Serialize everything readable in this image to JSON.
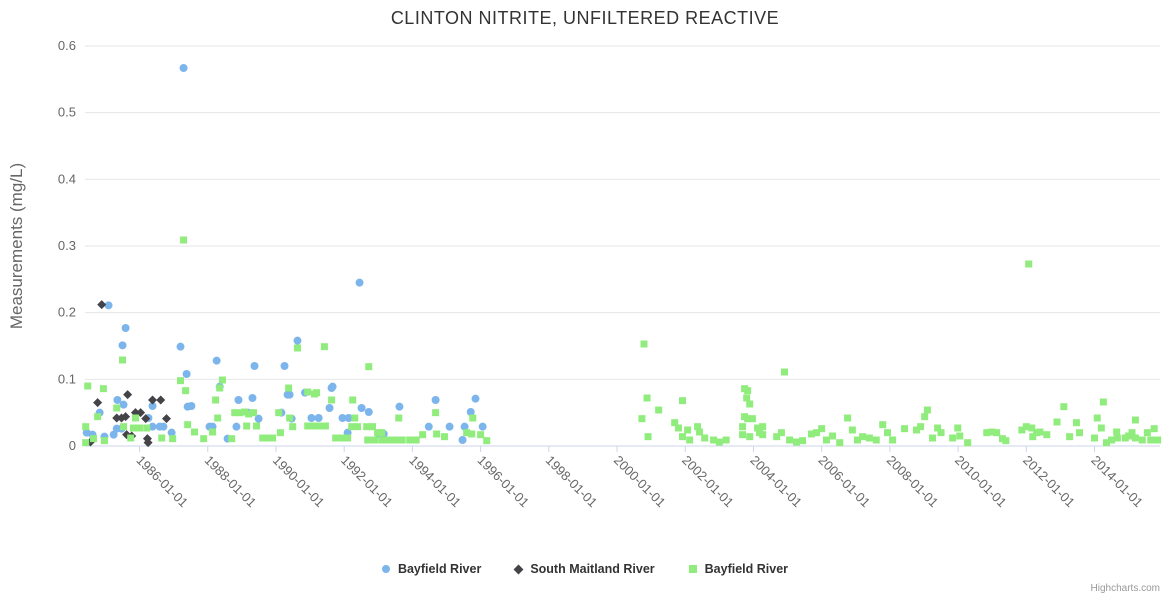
{
  "credits": "Highcharts.com",
  "chart_data": {
    "type": "scatter",
    "title": "CLINTON NITRITE, UNFILTERED REACTIVE",
    "xlabel": "",
    "ylabel": "Measurements (mg/L)",
    "ylim": [
      0,
      0.6
    ],
    "xlim": [
      1984.4,
      2015.92
    ],
    "grid": "horizontal-only",
    "legend_position": "bottom-center",
    "colors": {
      "grid": "#e6e6e6",
      "axis_line": "#ccd6eb",
      "axis_label": "#666666",
      "axis_title": "#666666",
      "title": "#333333",
      "legend_text": "#333333",
      "credits_text": "#999999"
    },
    "y_ticks": [
      {
        "value": 0.0,
        "label": "0"
      },
      {
        "value": 0.1,
        "label": "0.1"
      },
      {
        "value": 0.2,
        "label": "0.2"
      },
      {
        "value": 0.3,
        "label": "0.3"
      },
      {
        "value": 0.4,
        "label": "0.4"
      },
      {
        "value": 0.5,
        "label": "0.5"
      },
      {
        "value": 0.6,
        "label": "0.6"
      }
    ],
    "x_ticks": [
      {
        "year": 1986,
        "label": "1986-01-01"
      },
      {
        "year": 1988,
        "label": "1988-01-01"
      },
      {
        "year": 1990,
        "label": "1990-01-01"
      },
      {
        "year": 1992,
        "label": "1992-01-01"
      },
      {
        "year": 1994,
        "label": "1994-01-01"
      },
      {
        "year": 1996,
        "label": "1996-01-01"
      },
      {
        "year": 1998,
        "label": "1998-01-01"
      },
      {
        "year": 2000,
        "label": "2000-01-01"
      },
      {
        "year": 2002,
        "label": "2002-01-01"
      },
      {
        "year": 2004,
        "label": "2004-01-01"
      },
      {
        "year": 2006,
        "label": "2006-01-01"
      },
      {
        "year": 2008,
        "label": "2008-01-01"
      },
      {
        "year": 2010,
        "label": "2010-01-01"
      },
      {
        "year": 2012,
        "label": "2012-01-01"
      },
      {
        "year": 2014,
        "label": "2014-01-01"
      }
    ],
    "series": [
      {
        "name": "Bayfield River",
        "color": "#7cb5ec",
        "marker": "circle",
        "points": [
          [
            1985.09,
            0.211
          ],
          [
            1985.59,
            0.177
          ],
          [
            1985.5,
            0.151
          ],
          [
            1987.29,
            0.567
          ],
          [
            1987.2,
            0.149
          ],
          [
            1988.26,
            0.128
          ],
          [
            1987.38,
            0.108
          ],
          [
            1988.35,
            0.089
          ],
          [
            1989.37,
            0.12
          ],
          [
            1990.25,
            0.12
          ],
          [
            1990.63,
            0.158
          ],
          [
            1992.45,
            0.245
          ],
          [
            1991.66,
            0.089
          ],
          [
            1990.4,
            0.077
          ],
          [
            1990.85,
            0.08
          ],
          [
            1989.31,
            0.072
          ],
          [
            1985.35,
            0.069
          ],
          [
            1985.53,
            0.062
          ],
          [
            1986.38,
            0.06
          ],
          [
            1987.41,
            0.059
          ],
          [
            1987.52,
            0.06
          ],
          [
            1984.83,
            0.05
          ],
          [
            1985.33,
            0.026
          ],
          [
            1985.47,
            0.026
          ],
          [
            1986.38,
            0.029
          ],
          [
            1986.59,
            0.029
          ],
          [
            1986.7,
            0.029
          ],
          [
            1986.26,
            0.042
          ],
          [
            1986.94,
            0.02
          ],
          [
            1984.62,
            0.017
          ],
          [
            1984.97,
            0.014
          ],
          [
            1985.24,
            0.017
          ],
          [
            1984.45,
            0.02
          ],
          [
            1990.34,
            0.077
          ],
          [
            1988.9,
            0.069
          ],
          [
            1989.17,
            0.05
          ],
          [
            1989.49,
            0.041
          ],
          [
            1988.05,
            0.029
          ],
          [
            1988.14,
            0.029
          ],
          [
            1988.84,
            0.029
          ],
          [
            1990.16,
            0.05
          ],
          [
            1990.46,
            0.041
          ],
          [
            1988.58,
            0.011
          ],
          [
            1991.63,
            0.087
          ],
          [
            1991.57,
            0.057
          ],
          [
            1992.51,
            0.057
          ],
          [
            1992.72,
            0.051
          ],
          [
            1993.62,
            0.059
          ],
          [
            1991.04,
            0.042
          ],
          [
            1991.25,
            0.042
          ],
          [
            1991.95,
            0.042
          ],
          [
            1992.13,
            0.042
          ],
          [
            1992.1,
            0.02
          ],
          [
            1993.01,
            0.018
          ],
          [
            1993.16,
            0.018
          ],
          [
            1994.68,
            0.069
          ],
          [
            1995.85,
            0.071
          ],
          [
            1995.71,
            0.051
          ],
          [
            1994.48,
            0.029
          ],
          [
            1995.09,
            0.029
          ],
          [
            1995.53,
            0.029
          ],
          [
            1996.06,
            0.029
          ],
          [
            1995.47,
            0.009
          ]
        ]
      },
      {
        "name": "South Maitland River",
        "color": "#434348",
        "marker": "diamond",
        "points": [
          [
            1984.89,
            0.212
          ],
          [
            1984.77,
            0.065
          ],
          [
            1985.65,
            0.077
          ],
          [
            1986.38,
            0.069
          ],
          [
            1986.62,
            0.069
          ],
          [
            1985.33,
            0.042
          ],
          [
            1985.47,
            0.042
          ],
          [
            1985.59,
            0.044
          ],
          [
            1985.88,
            0.05
          ],
          [
            1986.03,
            0.05
          ],
          [
            1986.18,
            0.041
          ],
          [
            1986.79,
            0.041
          ],
          [
            1985.77,
            0.015
          ],
          [
            1986.23,
            0.011
          ],
          [
            1984.56,
            0.006
          ],
          [
            1985.62,
            0.017
          ],
          [
            1986.25,
            0.005
          ]
        ]
      },
      {
        "name": "Bayfield River",
        "color": "#90ed7d",
        "marker": "square",
        "points": [
          [
            1987.29,
            0.309
          ],
          [
            1985.5,
            0.129
          ],
          [
            1990.63,
            0.147
          ],
          [
            1991.42,
            0.149
          ],
          [
            1992.72,
            0.119
          ],
          [
            1987.2,
            0.098
          ],
          [
            1988.43,
            0.099
          ],
          [
            1991.13,
            0.078
          ],
          [
            1984.48,
            0.09
          ],
          [
            1984.94,
            0.086
          ],
          [
            1987.35,
            0.083
          ],
          [
            1985.33,
            0.057
          ],
          [
            1984.77,
            0.044
          ],
          [
            1985.88,
            0.042
          ],
          [
            1985.82,
            0.027
          ],
          [
            1986.0,
            0.027
          ],
          [
            1986.21,
            0.027
          ],
          [
            1985.53,
            0.029
          ],
          [
            1985.74,
            0.012
          ],
          [
            1984.65,
            0.011
          ],
          [
            1984.97,
            0.008
          ],
          [
            1986.65,
            0.012
          ],
          [
            1986.97,
            0.011
          ],
          [
            1987.41,
            0.032
          ],
          [
            1988.35,
            0.087
          ],
          [
            1990.37,
            0.087
          ],
          [
            1988.23,
            0.069
          ],
          [
            1988.79,
            0.05
          ],
          [
            1988.93,
            0.05
          ],
          [
            1989.34,
            0.05
          ],
          [
            1990.08,
            0.05
          ],
          [
            1988.29,
            0.042
          ],
          [
            1989.14,
            0.03
          ],
          [
            1989.43,
            0.03
          ],
          [
            1990.4,
            0.042
          ],
          [
            1987.61,
            0.021
          ],
          [
            1987.88,
            0.011
          ],
          [
            1988.14,
            0.021
          ],
          [
            1988.7,
            0.011
          ],
          [
            1989.61,
            0.012
          ],
          [
            1989.75,
            0.012
          ],
          [
            1989.9,
            0.012
          ],
          [
            1990.13,
            0.02
          ],
          [
            1990.49,
            0.029
          ],
          [
            1989.08,
            0.051
          ],
          [
            1989.2,
            0.048
          ],
          [
            1990.93,
            0.081
          ],
          [
            1991.19,
            0.08
          ],
          [
            1991.63,
            0.069
          ],
          [
            1992.25,
            0.069
          ],
          [
            1992.31,
            0.042
          ],
          [
            1993.6,
            0.042
          ],
          [
            1990.93,
            0.03
          ],
          [
            1991.1,
            0.03
          ],
          [
            1991.28,
            0.03
          ],
          [
            1991.45,
            0.03
          ],
          [
            1992.22,
            0.029
          ],
          [
            1992.39,
            0.029
          ],
          [
            1992.66,
            0.029
          ],
          [
            1992.83,
            0.029
          ],
          [
            1992.98,
            0.02
          ],
          [
            1993.1,
            0.02
          ],
          [
            1991.75,
            0.012
          ],
          [
            1991.92,
            0.012
          ],
          [
            1992.1,
            0.012
          ],
          [
            1992.69,
            0.009
          ],
          [
            1992.89,
            0.009
          ],
          [
            1993.1,
            0.009
          ],
          [
            1993.3,
            0.009
          ],
          [
            1993.5,
            0.009
          ],
          [
            1993.7,
            0.009
          ],
          [
            1993.92,
            0.009
          ],
          [
            1994.11,
            0.009
          ],
          [
            1994.68,
            0.05
          ],
          [
            1995.77,
            0.042
          ],
          [
            1994.3,
            0.017
          ],
          [
            1994.71,
            0.018
          ],
          [
            1994.94,
            0.014
          ],
          [
            1995.59,
            0.02
          ],
          [
            1995.74,
            0.018
          ],
          [
            1996.0,
            0.017
          ],
          [
            1996.18,
            0.008
          ],
          [
            1984.42,
            0.029
          ],
          [
            1984.42,
            0.005
          ],
          [
            2000.79,
            0.153
          ],
          [
            2000.88,
            0.072
          ],
          [
            2001.22,
            0.054
          ],
          [
            2000.73,
            0.041
          ],
          [
            2001.92,
            0.068
          ],
          [
            2000.91,
            0.014
          ],
          [
            2001.69,
            0.035
          ],
          [
            2001.8,
            0.027
          ],
          [
            2001.92,
            0.014
          ],
          [
            2002.07,
            0.024
          ],
          [
            2002.13,
            0.009
          ],
          [
            2002.36,
            0.029
          ],
          [
            2002.42,
            0.021
          ],
          [
            2002.57,
            0.012
          ],
          [
            2002.83,
            0.009
          ],
          [
            2003.0,
            0.006
          ],
          [
            2003.2,
            0.009
          ],
          [
            2003.74,
            0.086
          ],
          [
            2003.83,
            0.083
          ],
          [
            2003.8,
            0.072
          ],
          [
            2003.89,
            0.063
          ],
          [
            2003.68,
            0.029
          ],
          [
            2003.74,
            0.044
          ],
          [
            2003.83,
            0.041
          ],
          [
            2003.97,
            0.041
          ],
          [
            2004.12,
            0.027
          ],
          [
            2004.18,
            0.02
          ],
          [
            2004.27,
            0.029
          ],
          [
            2003.68,
            0.017
          ],
          [
            2003.89,
            0.014
          ],
          [
            2004.27,
            0.017
          ],
          [
            2004.91,
            0.111
          ],
          [
            2004.68,
            0.014
          ],
          [
            2004.82,
            0.02
          ],
          [
            2005.06,
            0.009
          ],
          [
            2005.26,
            0.006
          ],
          [
            2005.44,
            0.008
          ],
          [
            2005.7,
            0.018
          ],
          [
            2005.85,
            0.02
          ],
          [
            2006.0,
            0.026
          ],
          [
            2006.14,
            0.009
          ],
          [
            2006.32,
            0.015
          ],
          [
            2006.53,
            0.005
          ],
          [
            2006.76,
            0.042
          ],
          [
            2006.9,
            0.024
          ],
          [
            2007.05,
            0.009
          ],
          [
            2007.2,
            0.014
          ],
          [
            2007.4,
            0.012
          ],
          [
            2007.6,
            0.009
          ],
          [
            2007.79,
            0.032
          ],
          [
            2007.93,
            0.02
          ],
          [
            2008.08,
            0.009
          ],
          [
            2008.43,
            0.026
          ],
          [
            2008.78,
            0.024
          ],
          [
            2008.9,
            0.029
          ],
          [
            2009.02,
            0.044
          ],
          [
            2009.1,
            0.054
          ],
          [
            2009.25,
            0.012
          ],
          [
            2009.4,
            0.027
          ],
          [
            2009.5,
            0.02
          ],
          [
            2009.84,
            0.012
          ],
          [
            2009.99,
            0.027
          ],
          [
            2010.05,
            0.015
          ],
          [
            2010.28,
            0.005
          ],
          [
            2010.84,
            0.02
          ],
          [
            2010.99,
            0.021
          ],
          [
            2011.13,
            0.02
          ],
          [
            2011.3,
            0.011
          ],
          [
            2011.4,
            0.008
          ],
          [
            2011.87,
            0.024
          ],
          [
            2012.0,
            0.029
          ],
          [
            2012.07,
            0.273
          ],
          [
            2012.16,
            0.027
          ],
          [
            2012.19,
            0.014
          ],
          [
            2012.3,
            0.02
          ],
          [
            2012.4,
            0.021
          ],
          [
            2012.6,
            0.017
          ],
          [
            2012.9,
            0.036
          ],
          [
            2013.1,
            0.059
          ],
          [
            2013.27,
            0.014
          ],
          [
            2013.47,
            0.035
          ],
          [
            2013.56,
            0.02
          ],
          [
            2014.0,
            0.012
          ],
          [
            2014.08,
            0.042
          ],
          [
            2014.2,
            0.027
          ],
          [
            2014.26,
            0.066
          ],
          [
            2014.35,
            0.005
          ],
          [
            2014.5,
            0.009
          ],
          [
            2014.65,
            0.021
          ],
          [
            2014.67,
            0.012
          ],
          [
            2014.9,
            0.012
          ],
          [
            2015.0,
            0.015
          ],
          [
            2015.1,
            0.02
          ],
          [
            2015.2,
            0.039
          ],
          [
            2015.2,
            0.012
          ],
          [
            2015.4,
            0.009
          ],
          [
            2015.55,
            0.02
          ],
          [
            2015.65,
            0.009
          ],
          [
            2015.75,
            0.026
          ],
          [
            2015.85,
            0.009
          ]
        ]
      }
    ]
  }
}
